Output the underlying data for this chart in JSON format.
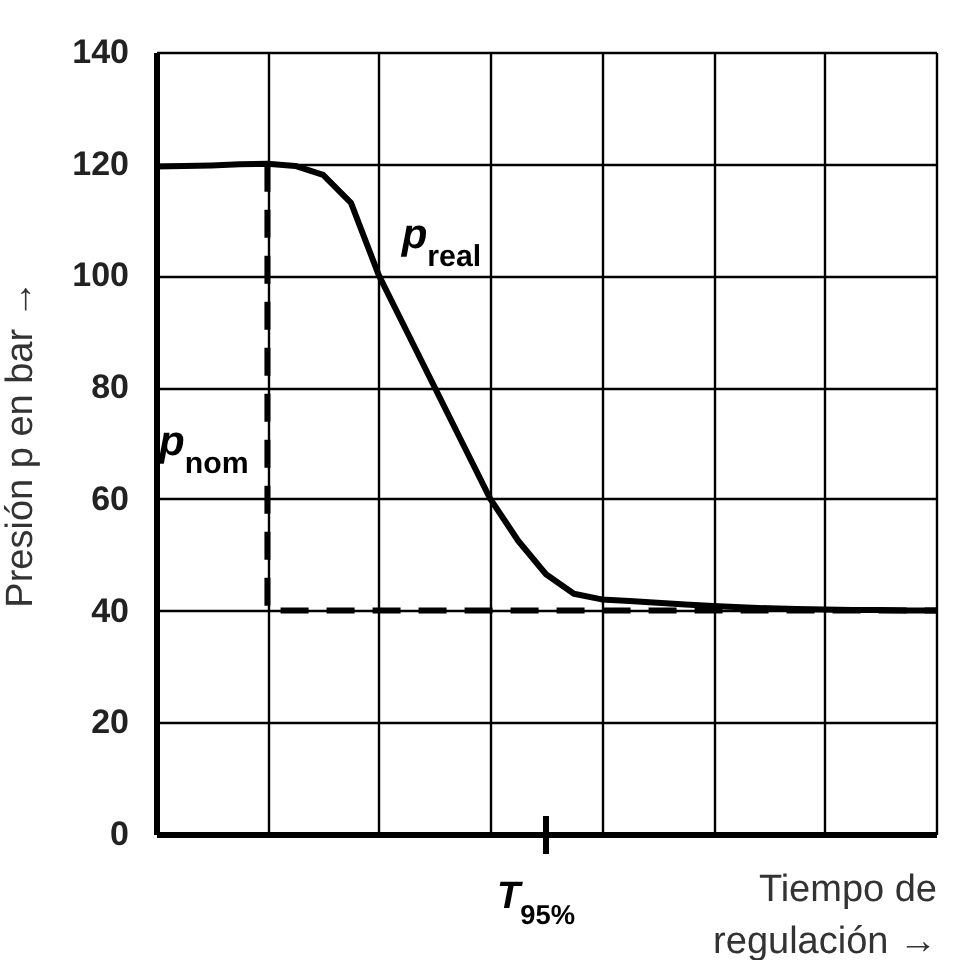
{
  "chart_data": {
    "type": "line",
    "ylabel": "Presión p en bar →",
    "xlabel": "Tiempo de regulación →",
    "categories": [
      null,
      null,
      null,
      null,
      null,
      null,
      null,
      null,
      null,
      null,
      null,
      null,
      null,
      null,
      null,
      null,
      null,
      null,
      null,
      null,
      null,
      null,
      null,
      null,
      null,
      null,
      null,
      null,
      null
    ],
    "ylim": [
      0,
      140
    ],
    "yticks": [
      0,
      20,
      40,
      60,
      80,
      100,
      120,
      140
    ],
    "grid": true,
    "tick_labels": "y",
    "series": [
      {
        "name": "p$_{real}$",
        "color": "#000000",
        "line_style": "solid",
        "values": [
          119.5,
          119.6,
          119.7,
          119.9,
          120,
          119.6,
          118,
          113,
          100,
          90,
          80,
          70,
          60,
          52.5,
          46.5,
          43,
          42,
          41.7,
          41.4,
          41.1,
          40.8,
          40.6,
          40.4,
          40.3,
          40.2,
          40.1,
          40.1,
          40,
          40
        ]
      },
      {
        "name": "p$_{nom}$",
        "type": "step",
        "color": "#000000",
        "line_style": "dashed",
        "values": [
          null,
          null,
          null,
          null,
          120,
          40,
          40,
          40,
          40,
          40,
          40,
          40,
          40,
          40,
          40,
          40,
          40,
          40,
          40,
          40,
          40,
          40,
          40,
          40,
          40,
          40,
          40,
          40,
          40
        ]
      }
    ],
    "annotations": [
      "T$_{95%}$"
    ]
  }
}
